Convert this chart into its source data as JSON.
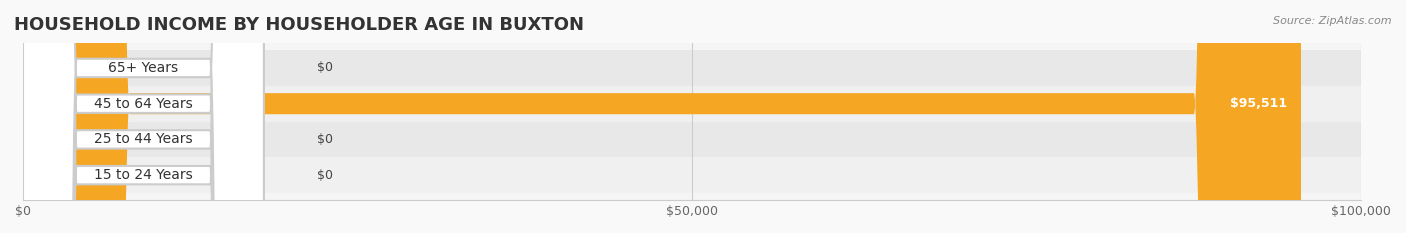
{
  "title": "HOUSEHOLD INCOME BY HOUSEHOLDER AGE IN BUXTON",
  "source": "Source: ZipAtlas.com",
  "categories": [
    "15 to 24 Years",
    "25 to 44 Years",
    "45 to 64 Years",
    "65+ Years"
  ],
  "values": [
    0,
    0,
    95511,
    0
  ],
  "bar_colors": [
    "#a8a8d8",
    "#f0a0b0",
    "#f5a623",
    "#f0a0b0"
  ],
  "label_colors": [
    "#a8a8d8",
    "#f0a0b0",
    "#f5a623",
    "#f0b8c0"
  ],
  "value_labels": [
    "$0",
    "$0",
    "$95,511",
    "$0"
  ],
  "xlim": [
    0,
    100000
  ],
  "xticks": [
    0,
    50000,
    100000
  ],
  "xticklabels": [
    "$0",
    "$50,000",
    "$100,000"
  ],
  "bar_height": 0.55,
  "background_color": "#f5f5f5",
  "row_colors": [
    "#efefef",
    "#e8e8e8",
    "#efefef",
    "#e8e8e8"
  ],
  "title_fontsize": 13,
  "label_fontsize": 10,
  "value_fontsize": 9
}
